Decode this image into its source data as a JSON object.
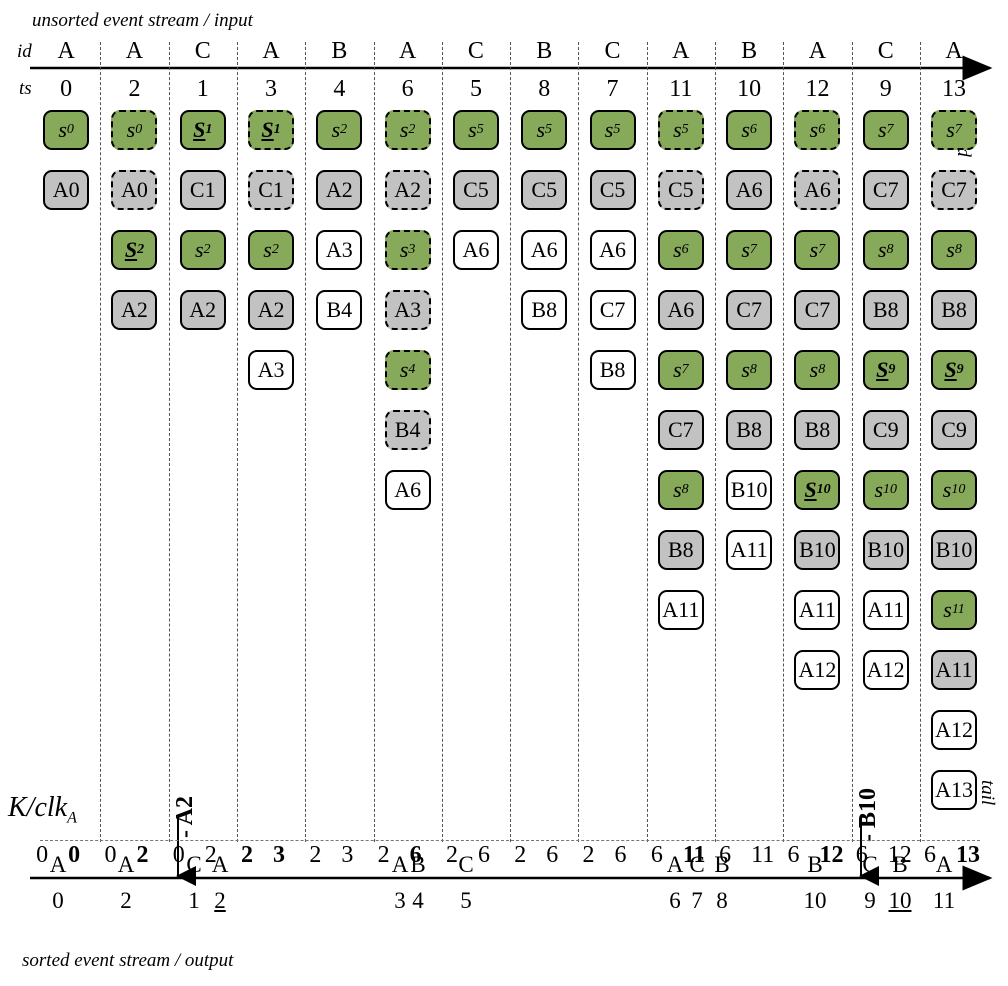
{
  "labels": {
    "top_caption": "unsorted event stream / input",
    "bottom_caption": "sorted event stream / output",
    "id_row": "id",
    "ts_row": "ts",
    "head": "head",
    "tail": "tail",
    "k_clk_main": "K/clk",
    "k_clk_sub": "A",
    "marker_1": "- A2",
    "marker_2": "- B10"
  },
  "columns": [
    {
      "id": "A",
      "ts": "0",
      "k": "0",
      "clk": "0",
      "clk_bold": true,
      "cells": [
        {
          "t": "s",
          "v": "0",
          "c": "green"
        },
        {
          "t": "e",
          "v": "A0",
          "c": "grey"
        }
      ]
    },
    {
      "id": "A",
      "ts": "2",
      "k": "0",
      "clk": "2",
      "clk_bold": true,
      "cells": [
        {
          "t": "s",
          "v": "0",
          "c": "green",
          "d": true
        },
        {
          "t": "e",
          "v": "A0",
          "c": "grey",
          "d": true
        },
        {
          "t": "S",
          "v": "2",
          "c": "green"
        },
        {
          "t": "e",
          "v": "A2",
          "c": "grey"
        }
      ]
    },
    {
      "id": "C",
      "ts": "1",
      "k": "0",
      "clk": "2",
      "cells": [
        {
          "t": "S",
          "v": "1",
          "c": "green"
        },
        {
          "t": "e",
          "v": "C1",
          "c": "grey"
        },
        {
          "t": "s",
          "v": "2",
          "c": "green"
        },
        {
          "t": "e",
          "v": "A2",
          "c": "grey"
        }
      ]
    },
    {
      "id": "A",
      "ts": "3",
      "k": "2",
      "clk": "3",
      "k_bold": true,
      "clk_bold": true,
      "cells": [
        {
          "t": "S",
          "v": "1",
          "c": "green",
          "d": true
        },
        {
          "t": "e",
          "v": "C1",
          "c": "grey",
          "d": true
        },
        {
          "t": "s",
          "v": "2",
          "c": "green"
        },
        {
          "t": "e",
          "v": "A2",
          "c": "grey"
        },
        {
          "t": "e",
          "v": "A3",
          "c": "white"
        }
      ]
    },
    {
      "id": "B",
      "ts": "4",
      "k": "2",
      "clk": "3",
      "cells": [
        {
          "t": "s",
          "v": "2",
          "c": "green"
        },
        {
          "t": "e",
          "v": "A2",
          "c": "grey"
        },
        {
          "t": "e",
          "v": "A3",
          "c": "white"
        },
        {
          "t": "e",
          "v": "B4",
          "c": "white"
        }
      ]
    },
    {
      "id": "A",
      "ts": "6",
      "k": "2",
      "clk": "6",
      "clk_bold": true,
      "cells": [
        {
          "t": "s",
          "v": "2",
          "c": "green",
          "d": true
        },
        {
          "t": "e",
          "v": "A2",
          "c": "grey",
          "d": true
        },
        {
          "t": "s",
          "v": "3",
          "c": "green",
          "d": true
        },
        {
          "t": "e",
          "v": "A3",
          "c": "grey",
          "d": true
        },
        {
          "t": "s",
          "v": "4",
          "c": "green",
          "d": true
        },
        {
          "t": "e",
          "v": "B4",
          "c": "grey",
          "d": true
        },
        {
          "t": "e",
          "v": "A6",
          "c": "white"
        }
      ]
    },
    {
      "id": "C",
      "ts": "5",
      "k": "2",
      "clk": "6",
      "cells": [
        {
          "t": "s",
          "v": "5",
          "c": "green"
        },
        {
          "t": "e",
          "v": "C5",
          "c": "grey"
        },
        {
          "t": "e",
          "v": "A6",
          "c": "white"
        }
      ]
    },
    {
      "id": "B",
      "ts": "8",
      "k": "2",
      "clk": "6",
      "cells": [
        {
          "t": "s",
          "v": "5",
          "c": "green"
        },
        {
          "t": "e",
          "v": "C5",
          "c": "grey"
        },
        {
          "t": "e",
          "v": "A6",
          "c": "white"
        },
        {
          "t": "e",
          "v": "B8",
          "c": "white"
        }
      ]
    },
    {
      "id": "C",
      "ts": "7",
      "k": "2",
      "clk": "6",
      "cells": [
        {
          "t": "s",
          "v": "5",
          "c": "green"
        },
        {
          "t": "e",
          "v": "C5",
          "c": "grey"
        },
        {
          "t": "e",
          "v": "A6",
          "c": "white"
        },
        {
          "t": "e",
          "v": "C7",
          "c": "white"
        },
        {
          "t": "e",
          "v": "B8",
          "c": "white"
        }
      ]
    },
    {
      "id": "A",
      "ts": "11",
      "k": "6",
      "clk": "11",
      "clk_bold": true,
      "cells": [
        {
          "t": "s",
          "v": "5",
          "c": "green",
          "d": true
        },
        {
          "t": "e",
          "v": "C5",
          "c": "grey",
          "d": true
        },
        {
          "t": "s",
          "v": "6",
          "c": "green"
        },
        {
          "t": "e",
          "v": "A6",
          "c": "grey"
        },
        {
          "t": "s",
          "v": "7",
          "c": "green"
        },
        {
          "t": "e",
          "v": "C7",
          "c": "grey"
        },
        {
          "t": "s",
          "v": "8",
          "c": "green"
        },
        {
          "t": "e",
          "v": "B8",
          "c": "grey"
        },
        {
          "t": "e",
          "v": "A11",
          "c": "white"
        }
      ]
    },
    {
      "id": "B",
      "ts": "10",
      "k": "6",
      "clk": "11",
      "cells": [
        {
          "t": "s",
          "v": "6",
          "c": "green"
        },
        {
          "t": "e",
          "v": "A6",
          "c": "grey"
        },
        {
          "t": "s",
          "v": "7",
          "c": "green"
        },
        {
          "t": "e",
          "v": "C7",
          "c": "grey"
        },
        {
          "t": "s",
          "v": "8",
          "c": "green"
        },
        {
          "t": "e",
          "v": "B8",
          "c": "grey"
        },
        {
          "t": "e",
          "v": "B10",
          "c": "white"
        },
        {
          "t": "e",
          "v": "A11",
          "c": "white"
        }
      ]
    },
    {
      "id": "A",
      "ts": "12",
      "k": "6",
      "clk": "12",
      "clk_bold": true,
      "cells": [
        {
          "t": "s",
          "v": "6",
          "c": "green",
          "d": true
        },
        {
          "t": "e",
          "v": "A6",
          "c": "grey",
          "d": true
        },
        {
          "t": "s",
          "v": "7",
          "c": "green"
        },
        {
          "t": "e",
          "v": "C7",
          "c": "grey"
        },
        {
          "t": "s",
          "v": "8",
          "c": "green"
        },
        {
          "t": "e",
          "v": "B8",
          "c": "grey"
        },
        {
          "t": "S",
          "v": "10",
          "c": "green"
        },
        {
          "t": "e",
          "v": "B10",
          "c": "grey"
        },
        {
          "t": "e",
          "v": "A11",
          "c": "white"
        },
        {
          "t": "e",
          "v": "A12",
          "c": "white"
        }
      ]
    },
    {
      "id": "C",
      "ts": "9",
      "k": "6",
      "clk": "12",
      "cells": [
        {
          "t": "s",
          "v": "7",
          "c": "green"
        },
        {
          "t": "e",
          "v": "C7",
          "c": "grey"
        },
        {
          "t": "s",
          "v": "8",
          "c": "green"
        },
        {
          "t": "e",
          "v": "B8",
          "c": "grey"
        },
        {
          "t": "S",
          "v": "9",
          "c": "green"
        },
        {
          "t": "e",
          "v": "C9",
          "c": "grey"
        },
        {
          "t": "s",
          "v": "10",
          "c": "green"
        },
        {
          "t": "e",
          "v": "B10",
          "c": "grey"
        },
        {
          "t": "e",
          "v": "A11",
          "c": "white"
        },
        {
          "t": "e",
          "v": "A12",
          "c": "white"
        }
      ]
    },
    {
      "id": "A",
      "ts": "13",
      "k": "6",
      "clk": "13",
      "clk_bold": true,
      "cells": [
        {
          "t": "s",
          "v": "7",
          "c": "green",
          "d": true
        },
        {
          "t": "e",
          "v": "C7",
          "c": "grey",
          "d": true
        },
        {
          "t": "s",
          "v": "8",
          "c": "green"
        },
        {
          "t": "e",
          "v": "B8",
          "c": "grey"
        },
        {
          "t": "S",
          "v": "9",
          "c": "green"
        },
        {
          "t": "e",
          "v": "C9",
          "c": "grey"
        },
        {
          "t": "s",
          "v": "10",
          "c": "green"
        },
        {
          "t": "e",
          "v": "B10",
          "c": "grey"
        },
        {
          "t": "s",
          "v": "11",
          "c": "green"
        },
        {
          "t": "e",
          "v": "A11",
          "c": "grey"
        },
        {
          "t": "e",
          "v": "A12",
          "c": "white"
        },
        {
          "t": "e",
          "v": "A13",
          "c": "white"
        }
      ]
    }
  ],
  "output": [
    {
      "id": "A",
      "ts": "0"
    },
    {
      "id": "A",
      "ts": "2"
    },
    {
      "id": "C",
      "ts": "1"
    },
    {
      "id": "A",
      "ts": "2",
      "ul": true
    },
    {
      "id": "A",
      "ts": "3"
    },
    {
      "id": "B",
      "ts": "4"
    },
    {
      "id": "C",
      "ts": "5"
    },
    {
      "id": "A",
      "ts": "6"
    },
    {
      "id": "C",
      "ts": "7"
    },
    {
      "id": "B",
      "ts": "8"
    },
    {
      "id": "B",
      "ts": "10"
    },
    {
      "id": "C",
      "ts": "9"
    },
    {
      "id": "B",
      "ts": "10",
      "ul": true
    },
    {
      "id": "A",
      "ts": "11"
    }
  ]
}
